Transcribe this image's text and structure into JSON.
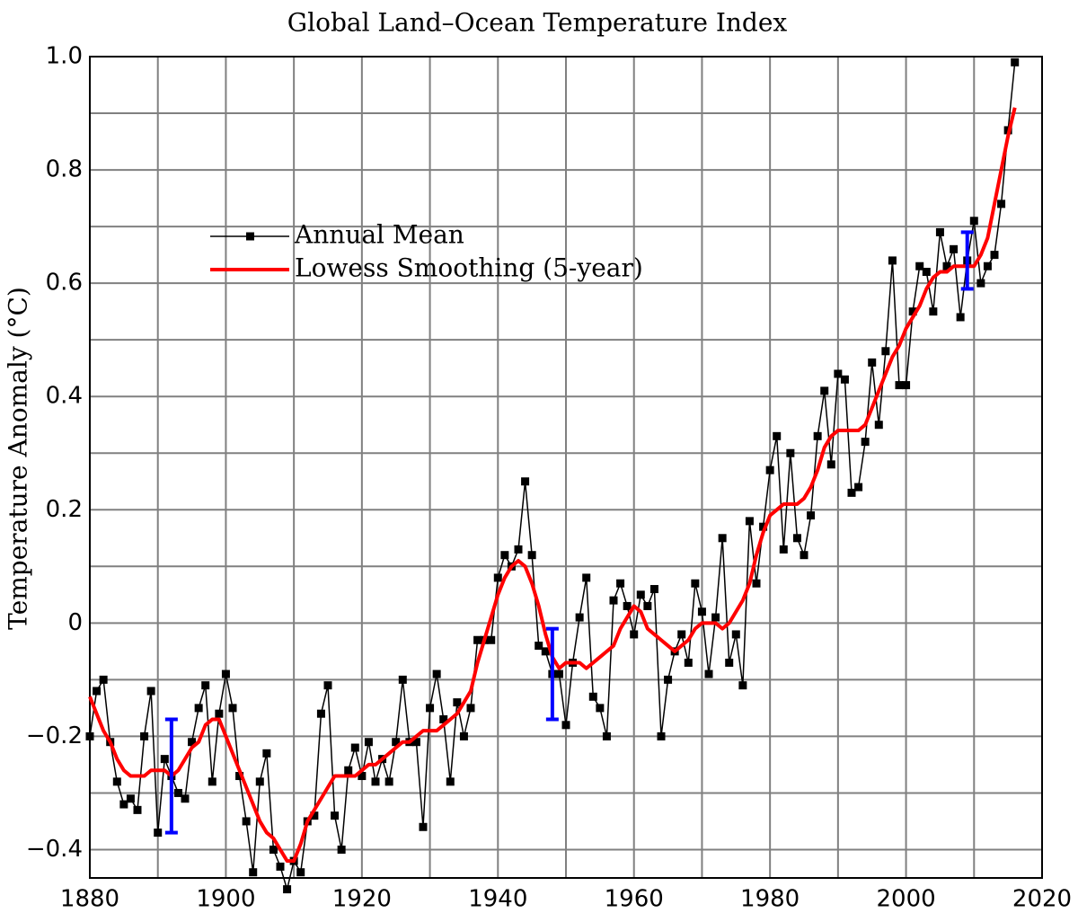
{
  "chart_data": {
    "type": "line",
    "title": "Global Land–Ocean Temperature Index",
    "ylabel": "Temperature Anomaly (°C)",
    "x": [
      1880,
      1881,
      1882,
      1883,
      1884,
      1885,
      1886,
      1887,
      1888,
      1889,
      1890,
      1891,
      1892,
      1893,
      1894,
      1895,
      1896,
      1897,
      1898,
      1899,
      1900,
      1901,
      1902,
      1903,
      1904,
      1905,
      1906,
      1907,
      1908,
      1909,
      1910,
      1911,
      1912,
      1913,
      1914,
      1915,
      1916,
      1917,
      1918,
      1919,
      1920,
      1921,
      1922,
      1923,
      1924,
      1925,
      1926,
      1927,
      1928,
      1929,
      1930,
      1931,
      1932,
      1933,
      1934,
      1935,
      1936,
      1937,
      1938,
      1939,
      1940,
      1941,
      1942,
      1943,
      1944,
      1945,
      1946,
      1947,
      1948,
      1949,
      1950,
      1951,
      1952,
      1953,
      1954,
      1955,
      1956,
      1957,
      1958,
      1959,
      1960,
      1961,
      1962,
      1963,
      1964,
      1965,
      1966,
      1967,
      1968,
      1969,
      1970,
      1971,
      1972,
      1973,
      1974,
      1975,
      1976,
      1977,
      1978,
      1979,
      1980,
      1981,
      1982,
      1983,
      1984,
      1985,
      1986,
      1987,
      1988,
      1989,
      1990,
      1991,
      1992,
      1993,
      1994,
      1995,
      1996,
      1997,
      1998,
      1999,
      2000,
      2001,
      2002,
      2003,
      2004,
      2005,
      2006,
      2007,
      2008,
      2009,
      2010,
      2011,
      2012,
      2013,
      2014,
      2015,
      2016
    ],
    "series": [
      {
        "name": "Annual Mean",
        "color": "#000000",
        "marker": "square",
        "values": [
          -0.2,
          -0.12,
          -0.1,
          -0.21,
          -0.28,
          -0.32,
          -0.31,
          -0.33,
          -0.2,
          -0.12,
          -0.37,
          -0.24,
          -0.27,
          -0.3,
          -0.31,
          -0.21,
          -0.15,
          -0.11,
          -0.28,
          -0.16,
          -0.09,
          -0.15,
          -0.27,
          -0.35,
          -0.44,
          -0.28,
          -0.23,
          -0.4,
          -0.43,
          -0.47,
          -0.42,
          -0.44,
          -0.35,
          -0.34,
          -0.16,
          -0.11,
          -0.34,
          -0.4,
          -0.26,
          -0.22,
          -0.27,
          -0.21,
          -0.28,
          -0.24,
          -0.28,
          -0.21,
          -0.1,
          -0.21,
          -0.21,
          -0.36,
          -0.15,
          -0.09,
          -0.17,
          -0.28,
          -0.14,
          -0.2,
          -0.15,
          -0.03,
          -0.03,
          -0.03,
          0.08,
          0.12,
          0.1,
          0.13,
          0.25,
          0.12,
          -0.04,
          -0.05,
          -0.09,
          -0.09,
          -0.18,
          -0.07,
          0.01,
          0.08,
          -0.13,
          -0.15,
          -0.2,
          0.04,
          0.07,
          0.03,
          -0.02,
          0.05,
          0.03,
          0.06,
          -0.2,
          -0.1,
          -0.05,
          -0.02,
          -0.07,
          0.07,
          0.02,
          -0.09,
          0.01,
          0.15,
          -0.07,
          -0.02,
          -0.11,
          0.18,
          0.07,
          0.17,
          0.27,
          0.33,
          0.13,
          0.3,
          0.15,
          0.12,
          0.19,
          0.33,
          0.41,
          0.28,
          0.44,
          0.43,
          0.23,
          0.24,
          0.32,
          0.46,
          0.35,
          0.48,
          0.64,
          0.42,
          0.42,
          0.55,
          0.63,
          0.62,
          0.55,
          0.69,
          0.63,
          0.66,
          0.54,
          0.64,
          0.71,
          0.6,
          0.63,
          0.65,
          0.74,
          0.87,
          0.99
        ]
      },
      {
        "name": "Lowess Smoothing (5-year)",
        "color": "#ff0000",
        "values": [
          -0.13,
          -0.16,
          -0.19,
          -0.21,
          -0.24,
          -0.26,
          -0.27,
          -0.27,
          -0.27,
          -0.26,
          -0.26,
          -0.26,
          -0.27,
          -0.26,
          -0.24,
          -0.22,
          -0.21,
          -0.18,
          -0.17,
          -0.17,
          -0.2,
          -0.23,
          -0.26,
          -0.29,
          -0.32,
          -0.35,
          -0.37,
          -0.38,
          -0.4,
          -0.42,
          -0.42,
          -0.39,
          -0.35,
          -0.33,
          -0.31,
          -0.29,
          -0.27,
          -0.27,
          -0.27,
          -0.27,
          -0.26,
          -0.25,
          -0.25,
          -0.24,
          -0.23,
          -0.22,
          -0.21,
          -0.21,
          -0.2,
          -0.19,
          -0.19,
          -0.19,
          -0.18,
          -0.17,
          -0.16,
          -0.14,
          -0.12,
          -0.07,
          -0.03,
          0.01,
          0.05,
          0.08,
          0.1,
          0.11,
          0.1,
          0.07,
          0.03,
          -0.02,
          -0.06,
          -0.08,
          -0.07,
          -0.07,
          -0.07,
          -0.08,
          -0.07,
          -0.06,
          -0.05,
          -0.04,
          -0.01,
          0.01,
          0.03,
          0.02,
          -0.01,
          -0.02,
          -0.03,
          -0.04,
          -0.05,
          -0.04,
          -0.03,
          -0.01,
          0.0,
          0.0,
          0.0,
          -0.01,
          0.0,
          0.02,
          0.04,
          0.07,
          0.12,
          0.16,
          0.19,
          0.2,
          0.21,
          0.21,
          0.21,
          0.22,
          0.24,
          0.27,
          0.31,
          0.33,
          0.34,
          0.34,
          0.34,
          0.34,
          0.35,
          0.38,
          0.41,
          0.44,
          0.47,
          0.49,
          0.52,
          0.54,
          0.56,
          0.59,
          0.61,
          0.62,
          0.62,
          0.63,
          0.63,
          0.63,
          0.63,
          0.65,
          0.68,
          0.74,
          0.8,
          0.86,
          0.91
        ]
      }
    ],
    "error_bars": {
      "color": "#0000ff",
      "x": [
        1892,
        1948,
        2009
      ],
      "values": [
        -0.27,
        -0.09,
        0.64
      ],
      "errors": [
        0.1,
        0.08,
        0.05
      ]
    },
    "xlim": [
      1880,
      2020
    ],
    "xticks": [
      1880,
      1900,
      1920,
      1940,
      1960,
      1980,
      2000,
      2020
    ],
    "xgrid_minor": [
      1890,
      1910,
      1930,
      1950,
      1970,
      1990,
      2010
    ],
    "ylim": [
      -0.45,
      1.0
    ],
    "yticks": [
      {
        "value": -0.4,
        "label": "−0.4"
      },
      {
        "value": -0.2,
        "label": "−0.2"
      },
      0,
      0.2,
      0.4,
      0.6,
      0.8,
      {
        "value": 1,
        "label": "1.0"
      }
    ],
    "ygrid_minor": [
      -0.3,
      -0.1,
      0.1,
      0.3,
      0.5,
      0.7,
      0.9
    ],
    "grid": true,
    "legend": "upper left"
  }
}
